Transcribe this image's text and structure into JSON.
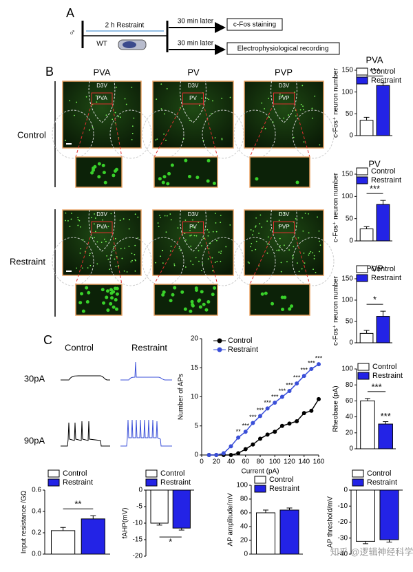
{
  "panel_a": {
    "label": "A",
    "sex": "♂",
    "treatment": "2 h Restraint",
    "genotype": "WT",
    "delay_1": "30 min later",
    "outcome_1": "c-Fos staining",
    "delay_2": "30 min later",
    "outcome_2": "Electrophysiological recording"
  },
  "panel_b": {
    "label": "B",
    "columns": [
      "PVA",
      "PV",
      "PVP"
    ],
    "rows": [
      "Control",
      "Restraint"
    ],
    "ventricle": "D3V"
  },
  "panel_c": {
    "label": "C",
    "groups": [
      "Control",
      "Restraint"
    ],
    "currents": [
      "30pA",
      "90pA"
    ]
  },
  "chart_data": [
    {
      "type": "bar",
      "title": "PVA",
      "y_label": "c-Fos⁺ neuron number",
      "ylim": [
        0,
        150
      ],
      "yticks": [
        0,
        50,
        100,
        150
      ],
      "significance": "***",
      "series": [
        {
          "name": "Control",
          "color": "#ffffff",
          "values": [
            35
          ],
          "errors": [
            7
          ]
        },
        {
          "name": "Restraint",
          "color": "#2323e6",
          "values": [
            115
          ],
          "errors": [
            6
          ]
        }
      ]
    },
    {
      "type": "bar",
      "title": "PV",
      "y_label": "c-Fos⁺ neuron number",
      "ylim": [
        0,
        150
      ],
      "yticks": [
        0,
        50,
        100,
        150
      ],
      "significance": "***",
      "series": [
        {
          "name": "Control",
          "color": "#ffffff",
          "values": [
            27
          ],
          "errors": [
            5
          ]
        },
        {
          "name": "Restraint",
          "color": "#2323e6",
          "values": [
            82
          ],
          "errors": [
            9
          ]
        }
      ]
    },
    {
      "type": "bar",
      "title": "PVP",
      "y_label": "c-Fos⁺ neuron number",
      "ylim": [
        0,
        150
      ],
      "yticks": [
        0,
        50,
        100,
        150
      ],
      "significance": "*",
      "series": [
        {
          "name": "Control",
          "color": "#ffffff",
          "values": [
            22
          ],
          "errors": [
            7
          ]
        },
        {
          "name": "Restraint",
          "color": "#2323e6",
          "values": [
            62
          ],
          "errors": [
            12
          ]
        }
      ]
    },
    {
      "type": "line",
      "x_label": "Current (pA)",
      "y_label": "Number of APs",
      "xlim": [
        0,
        160
      ],
      "xticks": [
        0,
        20,
        40,
        60,
        80,
        100,
        120,
        140,
        160
      ],
      "ylim": [
        0,
        20
      ],
      "yticks": [
        0,
        5,
        10,
        15,
        20
      ],
      "x": [
        10,
        20,
        30,
        40,
        50,
        60,
        70,
        80,
        90,
        100,
        110,
        120,
        130,
        140,
        150,
        160
      ],
      "significance": [
        null,
        null,
        null,
        null,
        "**",
        "***",
        "***",
        "***",
        "***",
        "***",
        "***",
        "***",
        "***",
        "***",
        "***",
        "***"
      ],
      "series": [
        {
          "name": "Control",
          "color": "#000000",
          "values": [
            0,
            0,
            0,
            0,
            0.3,
            1,
            1.8,
            2.8,
            3.5,
            4,
            5,
            5.4,
            5.8,
            7.2,
            7.6,
            9.6
          ]
        },
        {
          "name": "Restraint",
          "color": "#3a4fd8",
          "values": [
            0,
            0,
            0.3,
            1.5,
            3,
            4,
            5.5,
            6.7,
            8,
            9,
            10,
            11,
            12.3,
            13.6,
            14.8,
            15.6
          ]
        }
      ]
    },
    {
      "type": "bar",
      "y_label": "Rheobase (pA)",
      "ylim": [
        0,
        100
      ],
      "yticks": [
        0,
        20,
        40,
        60,
        80,
        100
      ],
      "significance": "***",
      "series": [
        {
          "name": "Control",
          "color": "#ffffff",
          "values": [
            60
          ],
          "errors": [
            3
          ]
        },
        {
          "name": "Restraint",
          "color": "#2323e6",
          "values": [
            31
          ],
          "errors": [
            3
          ],
          "annotation": "***"
        }
      ]
    },
    {
      "type": "bar",
      "y_label": "Input resistance /GΩ",
      "ylim": [
        0,
        0.6
      ],
      "yticks": [
        {
          "value": 0,
          "label": "0.0"
        },
        {
          "value": 0.2,
          "label": "0.2"
        },
        {
          "value": 0.4,
          "label": "0.4"
        },
        {
          "value": 0.6,
          "label": "0.6"
        }
      ],
      "significance": "**",
      "series": [
        {
          "name": "Control",
          "color": "#ffffff",
          "values": [
            0.22
          ],
          "errors": [
            0.03
          ]
        },
        {
          "name": "Restraint",
          "color": "#2323e6",
          "values": [
            0.33
          ],
          "errors": [
            0.03
          ]
        }
      ]
    },
    {
      "type": "bar",
      "y_label": "fAHP(mV)",
      "ylim": [
        -20,
        0
      ],
      "yticks": [
        -20,
        -15,
        -10,
        -5,
        0
      ],
      "significance": "*",
      "series": [
        {
          "name": "Control",
          "color": "#ffffff",
          "values": [
            -10
          ],
          "errors": [
            0.6
          ]
        },
        {
          "name": "Restraint",
          "color": "#2323e6",
          "values": [
            -11.5
          ],
          "errors": [
            0.6
          ]
        }
      ]
    },
    {
      "type": "bar",
      "y_label": "AP amplitude/mV",
      "ylim": [
        0,
        100
      ],
      "yticks": [
        0,
        20,
        40,
        60,
        80,
        100
      ],
      "series": [
        {
          "name": "Control",
          "color": "#ffffff",
          "values": [
            60
          ],
          "errors": [
            4
          ]
        },
        {
          "name": "Restraint",
          "color": "#2323e6",
          "values": [
            64
          ],
          "errors": [
            3
          ]
        }
      ]
    },
    {
      "type": "bar",
      "y_label": "AP threshold/mV",
      "ylim": [
        -40,
        0
      ],
      "yticks": [
        -40,
        -30,
        -20,
        -10,
        0
      ],
      "series": [
        {
          "name": "Control",
          "color": "#ffffff",
          "values": [
            -32
          ],
          "errors": [
            1.5
          ]
        },
        {
          "name": "Restraint",
          "color": "#2323e6",
          "values": [
            -31
          ],
          "errors": [
            1.5
          ]
        }
      ]
    }
  ],
  "watermark": "知乎 @逻辑神经科学"
}
